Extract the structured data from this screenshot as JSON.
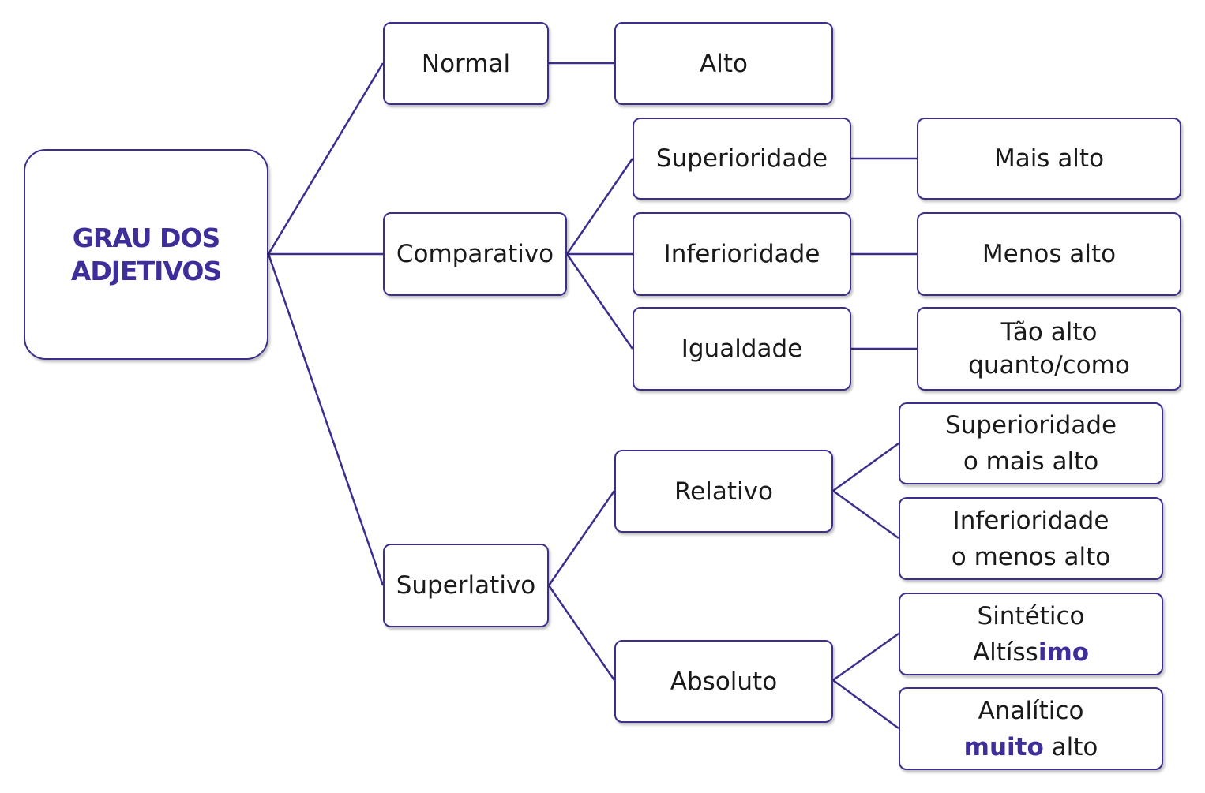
{
  "root": "GRAU DOS ADJETIVOS",
  "normal": {
    "label": "Normal",
    "example": "Alto"
  },
  "comparativo": {
    "label": "Comparativo",
    "superioridade": {
      "label": "Superioridade",
      "example": "Mais alto"
    },
    "inferioridade": {
      "label": "Inferioridade",
      "example": "Menos alto"
    },
    "igualdade": {
      "label": "Igualdade",
      "example_line1": "Tão alto",
      "example_line2": "quanto/como"
    }
  },
  "superlativo": {
    "label": "Superlativo",
    "relativo": {
      "label": "Relativo",
      "superioridade": {
        "line1": "Superioridade",
        "line2": "o mais alto"
      },
      "inferioridade": {
        "line1": "Inferioridade",
        "line2": "o menos alto"
      }
    },
    "absoluto": {
      "label": "Absoluto",
      "sintetico": {
        "line1": "Sintético",
        "line2_stem": "Altíss",
        "line2_suffix": "imo"
      },
      "analitico": {
        "line1": "Analítico",
        "line2_accent": "muito",
        "line2_rest": " alto"
      }
    }
  },
  "colors": {
    "line": "#3d2e8c",
    "accent": "#3d2e9a"
  }
}
